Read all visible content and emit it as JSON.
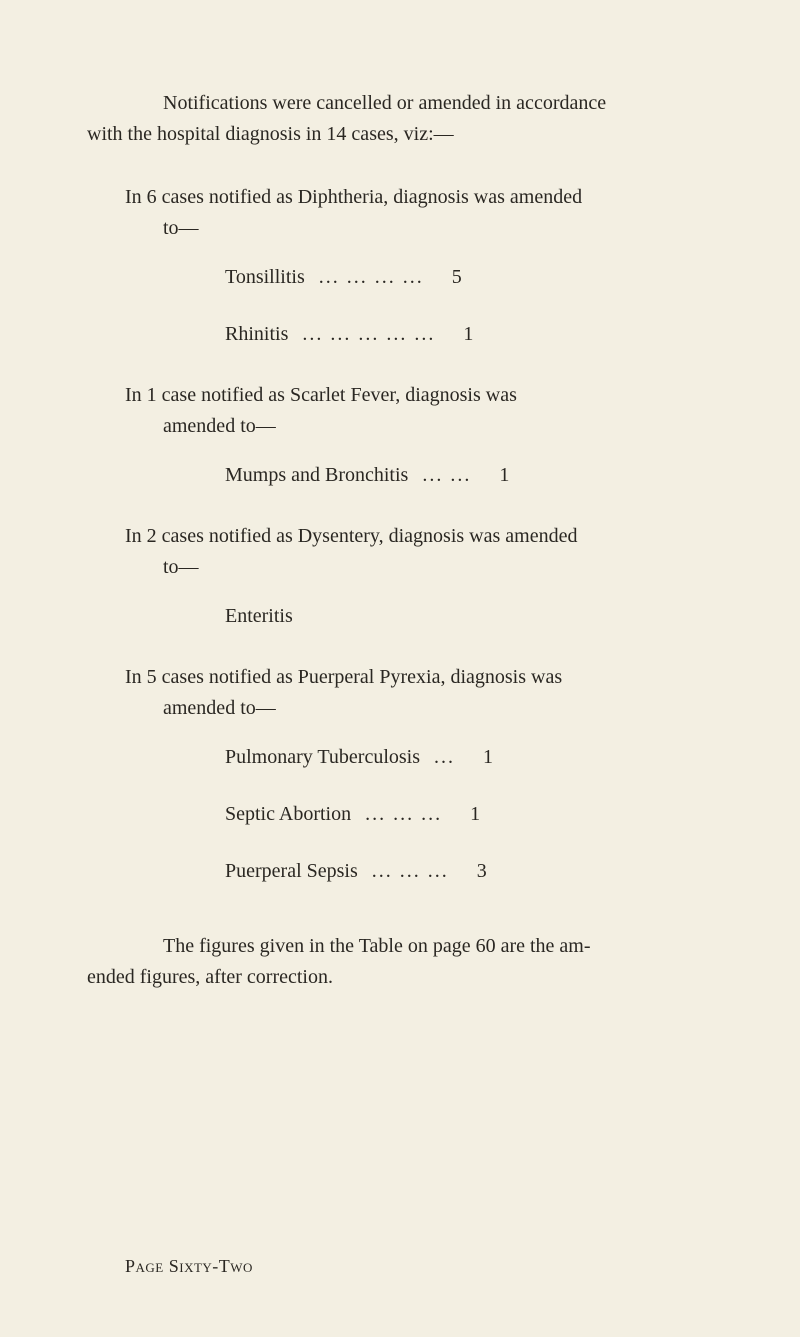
{
  "colors": {
    "background": "#f3efe2",
    "text": "#2a2722"
  },
  "typography": {
    "body_fontsize_pt": 15,
    "footer_fontsize_pt": 13,
    "family": "serif"
  },
  "intro": {
    "line1": "Notifications were cancelled or amended in accordance",
    "line2": "with the hospital diagnosis in 14 cases, viz:—"
  },
  "sections": [
    {
      "heading": "In 6 cases notified as Diphtheria, diagnosis was amended",
      "to": "to—",
      "items": [
        {
          "label": "Tonsillitis",
          "leader": "...  ...  ...  ...",
          "value": "5"
        },
        {
          "label": "Rhinitis",
          "leader": "...  ...  ...  ...  ...",
          "value": "1"
        }
      ]
    },
    {
      "heading": "In 1 case notified as Scarlet Fever, diagnosis was",
      "to": "amended to—",
      "items": [
        {
          "label": "Mumps and Bronchitis",
          "leader": "...  ...",
          "value": "1"
        }
      ]
    },
    {
      "heading": "In 2 cases notified as Dysentery, diagnosis was amended",
      "to": "to—",
      "extra": "Enteritis",
      "items": []
    },
    {
      "heading": "In 5 cases notified as Puerperal Pyrexia, diagnosis was",
      "to": "amended to—",
      "items": [
        {
          "label": "Pulmonary Tuberculosis",
          "leader": "...",
          "value": "1"
        },
        {
          "label": "Septic Abortion",
          "leader": "...  ...  ...",
          "value": "1"
        },
        {
          "label": "Puerperal Sepsis",
          "leader": "...  ...  ...",
          "value": "3"
        }
      ]
    }
  ],
  "closing": {
    "line1": "The figures given in the Table on page 60 are the am-",
    "line2": "ended figures, after correction."
  },
  "footer": "Page Sixty-Two"
}
